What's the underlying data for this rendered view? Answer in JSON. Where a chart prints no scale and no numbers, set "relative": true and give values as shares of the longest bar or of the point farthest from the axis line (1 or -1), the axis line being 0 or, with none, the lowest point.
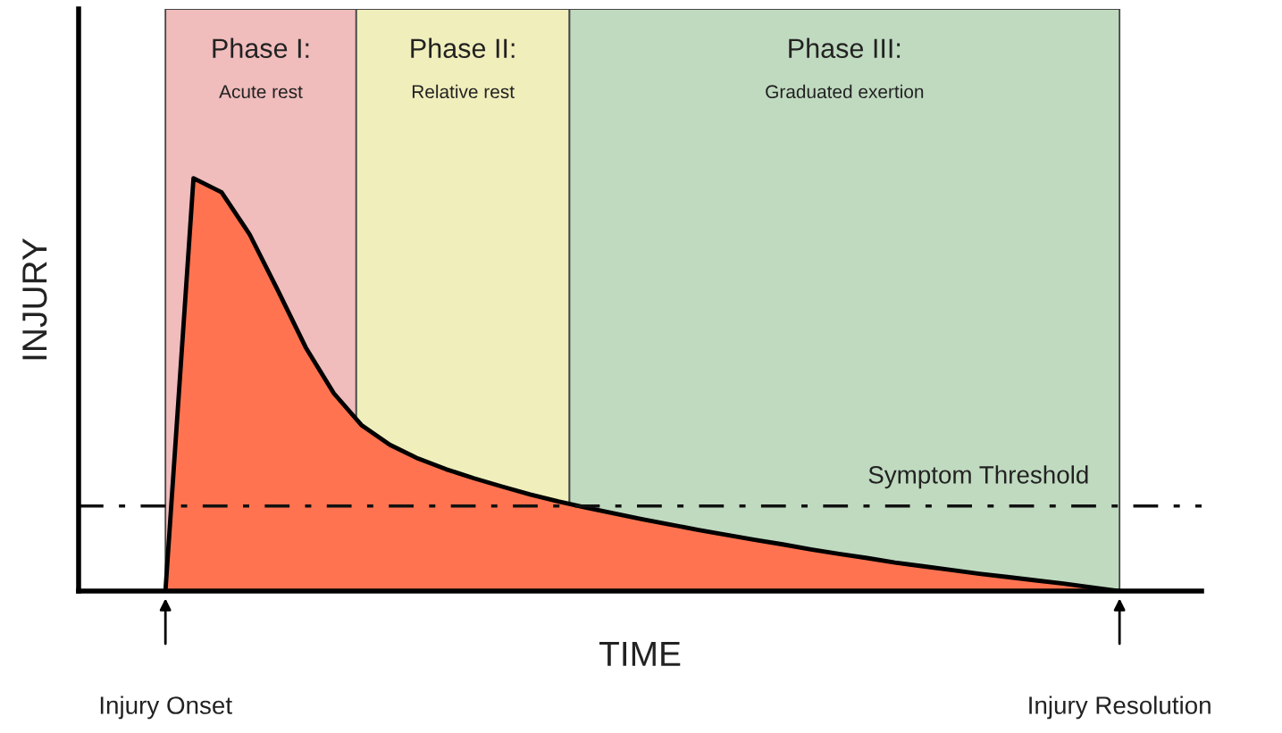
{
  "chart_data": {
    "type": "area",
    "relative": true,
    "xlabel": "TIME",
    "ylabel": "INJURY",
    "tick_labels": false,
    "grid": false,
    "legend": false,
    "categories": [
      null,
      null,
      null,
      null,
      null,
      null,
      null,
      null,
      null,
      null,
      null,
      null,
      null,
      null,
      null,
      null,
      null,
      null,
      null,
      null,
      null,
      null,
      null,
      null,
      null,
      null,
      null,
      null,
      null,
      null,
      null,
      null,
      null,
      null,
      null
    ],
    "series": [
      {
        "color": "#ff7350",
        "values": [
          0,
          1,
          0.966,
          0.864,
          0.729,
          0.59,
          0.479,
          0.401,
          0.354,
          0.321,
          0.295,
          0.273,
          0.253,
          0.234,
          0.217,
          0.202,
          0.188,
          0.174,
          0.161,
          0.148,
          0.136,
          0.124,
          0.113,
          0.101,
          0.09,
          0.08,
          0.069,
          0.06,
          0.051,
          0.042,
          0.034,
          0.026,
          0.018,
          0.009,
          0
        ]
      }
    ],
    "ref_lines": [
      {
        "axis": "y",
        "value": 0.206,
        "label": "Symptom Threshold",
        "color": "#111111",
        "line_style": "dashdot"
      }
    ],
    "annotations": [
      "Phase I:\nAcute rest",
      "Phase II:\nRelative rest",
      "Phase III:\nGraduated exertion",
      "Injury Onset",
      "Injury Resolution"
    ]
  }
}
